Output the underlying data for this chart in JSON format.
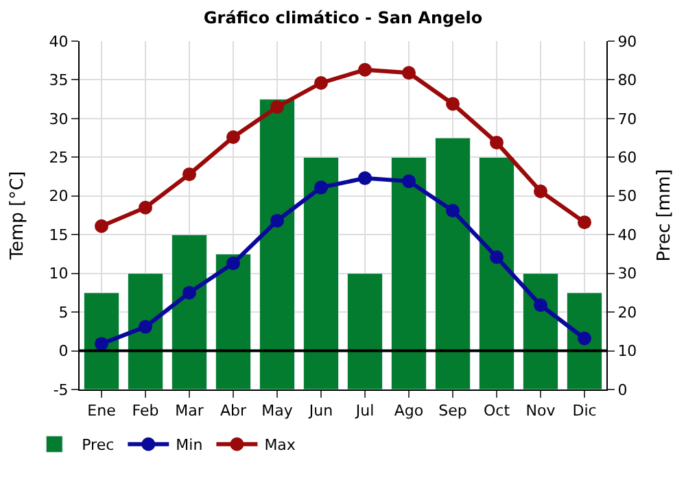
{
  "chart_data": {
    "type": "line",
    "title": "Gráfico climático - San Angelo",
    "categories": [
      "Ene",
      "Feb",
      "Mar",
      "Abr",
      "May",
      "Jun",
      "Jul",
      "Ago",
      "Sep",
      "Oct",
      "Nov",
      "Dic"
    ],
    "series": [
      {
        "name": "Prec",
        "type": "bar",
        "axis": "y2",
        "color": "#047c2f",
        "values": [
          25,
          30,
          40,
          35,
          75,
          60,
          30,
          60,
          65,
          60,
          30,
          25
        ]
      },
      {
        "name": "Min",
        "color": "#0a0a9a",
        "values": [
          0.9,
          3.1,
          7.5,
          11.3,
          16.8,
          21.1,
          22.3,
          21.9,
          18.1,
          12.1,
          5.9,
          1.6
        ]
      },
      {
        "name": "Max",
        "color": "#9a0a0a",
        "values": [
          16.1,
          18.5,
          22.8,
          27.6,
          31.5,
          34.6,
          36.3,
          35.9,
          31.9,
          26.9,
          20.6,
          16.6
        ]
      }
    ],
    "ylabel": "Temp [°C]",
    "y2label": "Prec [mm]",
    "ylim": [
      -5,
      40
    ],
    "yticks": [
      -5,
      0,
      5,
      10,
      15,
      20,
      25,
      30,
      35,
      40
    ],
    "y2lim": [
      0,
      90
    ],
    "y2ticks": [
      0,
      10,
      20,
      30,
      40,
      50,
      60,
      70,
      80,
      90
    ],
    "ref_lines": [
      {
        "axis": "y",
        "value": 0,
        "color": "#000000"
      }
    ],
    "grid": true,
    "legend": "bottom left",
    "marker": "circle",
    "line_style": "solid"
  }
}
